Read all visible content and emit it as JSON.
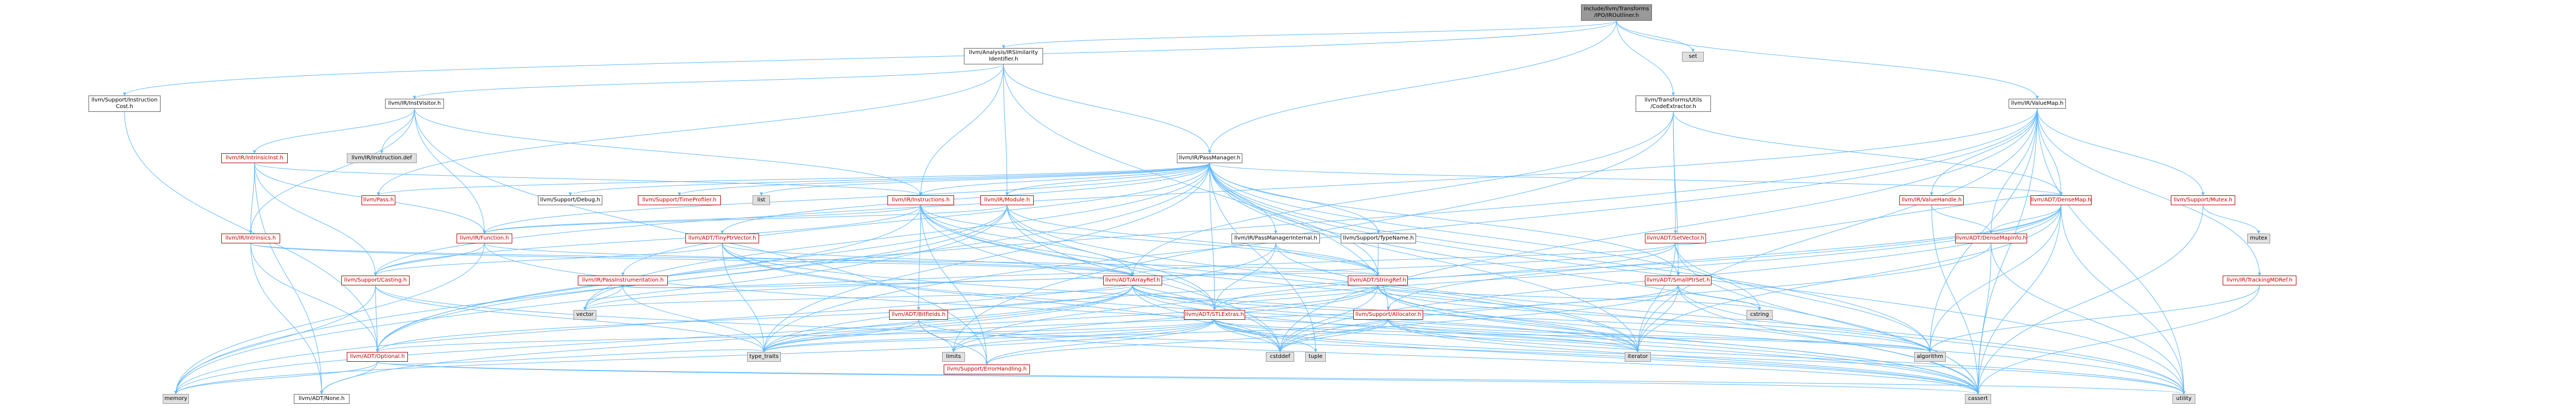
{
  "nodes": [
    {
      "id": "root",
      "lines": [
        "include/llvm/Transforms",
        "/IPO/IROutliner.h"
      ],
      "style": "root"
    },
    {
      "id": "ir-sim",
      "lines": [
        "llvm/Analysis/IRSimilarity",
        "Identifier.h"
      ],
      "style": "normal"
    },
    {
      "id": "set",
      "lines": [
        "set"
      ],
      "style": "grey"
    },
    {
      "id": "code-extractor",
      "lines": [
        "llvm/Transforms/Utils",
        "/CodeExtractor.h"
      ],
      "style": "normal"
    },
    {
      "id": "value-map",
      "lines": [
        "llvm/IR/ValueMap.h"
      ],
      "style": "normal"
    },
    {
      "id": "instruction-cost",
      "lines": [
        "llvm/Support/Instruction",
        "Cost.h"
      ],
      "style": "normal"
    },
    {
      "id": "inst-visitor",
      "lines": [
        "llvm/IR/InstVisitor.h"
      ],
      "style": "normal"
    },
    {
      "id": "pass-manager",
      "lines": [
        "llvm/IR/PassManager.h"
      ],
      "style": "normal"
    },
    {
      "id": "intrinsic-inst",
      "lines": [
        "llvm/IR/IntrinsicInst.h"
      ],
      "style": "red"
    },
    {
      "id": "instruction-def",
      "lines": [
        "llvm/IR/Instruction.def"
      ],
      "style": "grey"
    },
    {
      "id": "pass",
      "lines": [
        "llvm/Pass.h"
      ],
      "style": "red"
    },
    {
      "id": "support-debug",
      "lines": [
        "llvm/Support/Debug.h"
      ],
      "style": "normal"
    },
    {
      "id": "time-profiler",
      "lines": [
        "llvm/Support/TimeProfiler.h"
      ],
      "style": "red"
    },
    {
      "id": "list",
      "lines": [
        "list"
      ],
      "style": "grey"
    },
    {
      "id": "instructions",
      "lines": [
        "llvm/IR/Instructions.h"
      ],
      "style": "red"
    },
    {
      "id": "module",
      "lines": [
        "llvm/IR/Module.h"
      ],
      "style": "red"
    },
    {
      "id": "value-handle",
      "lines": [
        "llvm/IR/ValueHandle.h"
      ],
      "style": "red"
    },
    {
      "id": "dense-map",
      "lines": [
        "llvm/ADT/DenseMap.h"
      ],
      "style": "red"
    },
    {
      "id": "mutex-h",
      "lines": [
        "llvm/Support/Mutex.h"
      ],
      "style": "red"
    },
    {
      "id": "intrinsics",
      "lines": [
        "llvm/IR/Intrinsics.h"
      ],
      "style": "red"
    },
    {
      "id": "function",
      "lines": [
        "llvm/IR/Function.h"
      ],
      "style": "red"
    },
    {
      "id": "tiny-ptr-vector",
      "lines": [
        "llvm/ADT/TinyPtrVector.h"
      ],
      "style": "red"
    },
    {
      "id": "pass-manager-internal",
      "lines": [
        "llvm/IR/PassManagerInternal.h"
      ],
      "style": "normal"
    },
    {
      "id": "type-name",
      "lines": [
        "llvm/Support/TypeName.h"
      ],
      "style": "normal"
    },
    {
      "id": "set-vector",
      "lines": [
        "llvm/ADT/SetVector.h"
      ],
      "style": "red"
    },
    {
      "id": "dense-map-info",
      "lines": [
        "llvm/ADT/DenseMapInfo.h"
      ],
      "style": "red"
    },
    {
      "id": "mutex",
      "lines": [
        "mutex"
      ],
      "style": "grey"
    },
    {
      "id": "casting",
      "lines": [
        "llvm/Support/Casting.h"
      ],
      "style": "red"
    },
    {
      "id": "pass-instrumentation",
      "lines": [
        "llvm/IR/PassInstrumentation.h"
      ],
      "style": "red"
    },
    {
      "id": "array-ref",
      "lines": [
        "llvm/ADT/ArrayRef.h"
      ],
      "style": "red"
    },
    {
      "id": "string-ref",
      "lines": [
        "llvm/ADT/StringRef.h"
      ],
      "style": "red"
    },
    {
      "id": "small-ptr-set",
      "lines": [
        "llvm/ADT/SmallPtrSet.h"
      ],
      "style": "red"
    },
    {
      "id": "tracking-md-ref",
      "lines": [
        "llvm/IR/TrackingMDRef.h"
      ],
      "style": "red"
    },
    {
      "id": "vector",
      "lines": [
        "vector"
      ],
      "style": "grey"
    },
    {
      "id": "bitfields",
      "lines": [
        "llvm/ADT/Bitfields.h"
      ],
      "style": "red"
    },
    {
      "id": "stl-extras",
      "lines": [
        "llvm/ADT/STLExtras.h"
      ],
      "style": "red"
    },
    {
      "id": "allocator",
      "lines": [
        "llvm/Support/Allocator.h"
      ],
      "style": "red"
    },
    {
      "id": "cstring",
      "lines": [
        "cstring"
      ],
      "style": "grey"
    },
    {
      "id": "optional",
      "lines": [
        "llvm/ADT/Optional.h"
      ],
      "style": "red"
    },
    {
      "id": "type-traits",
      "lines": [
        "type_traits"
      ],
      "style": "grey"
    },
    {
      "id": "limits",
      "lines": [
        "limits"
      ],
      "style": "grey"
    },
    {
      "id": "error-handling",
      "lines": [
        "llvm/Support/ErrorHandling.h"
      ],
      "style": "red"
    },
    {
      "id": "cstddef",
      "lines": [
        "cstddef"
      ],
      "style": "grey"
    },
    {
      "id": "tuple",
      "lines": [
        "tuple"
      ],
      "style": "grey"
    },
    {
      "id": "iterator",
      "lines": [
        "iterator"
      ],
      "style": "grey"
    },
    {
      "id": "algorithm",
      "lines": [
        "algorithm"
      ],
      "style": "grey"
    },
    {
      "id": "memory",
      "lines": [
        "memory"
      ],
      "style": "grey"
    },
    {
      "id": "none",
      "lines": [
        "llvm/ADT/None.h"
      ],
      "style": "normal"
    },
    {
      "id": "cassert",
      "lines": [
        "cassert"
      ],
      "style": "grey"
    },
    {
      "id": "utility",
      "lines": [
        "utility"
      ],
      "style": "grey"
    }
  ],
  "edges": [
    [
      "root",
      "ir-sim"
    ],
    [
      "root",
      "set"
    ],
    [
      "root",
      "code-extractor"
    ],
    [
      "root",
      "value-map"
    ],
    [
      "root",
      "pass-manager"
    ],
    [
      "root",
      "instruction-cost"
    ],
    [
      "ir-sim",
      "inst-visitor"
    ],
    [
      "ir-sim",
      "pass-manager"
    ],
    [
      "ir-sim",
      "instructions"
    ],
    [
      "ir-sim",
      "module"
    ],
    [
      "ir-sim",
      "allocator"
    ],
    [
      "ir-sim",
      "pass"
    ],
    [
      "inst-visitor",
      "intrinsic-inst"
    ],
    [
      "inst-visitor",
      "instruction-def"
    ],
    [
      "inst-visitor",
      "instructions"
    ],
    [
      "inst-visitor",
      "intrinsics"
    ],
    [
      "inst-visitor",
      "function"
    ],
    [
      "inst-visitor",
      "error-handling"
    ],
    [
      "instruction-cost",
      "optional"
    ],
    [
      "intrinsic-inst",
      "intrinsics"
    ],
    [
      "intrinsic-inst",
      "function"
    ],
    [
      "intrinsic-inst",
      "casting"
    ],
    [
      "intrinsic-inst",
      "instructions"
    ],
    [
      "intrinsic-inst",
      "none"
    ],
    [
      "pass-manager",
      "support-debug"
    ],
    [
      "pass-manager",
      "time-profiler"
    ],
    [
      "pass-manager",
      "list"
    ],
    [
      "pass-manager",
      "module"
    ],
    [
      "pass-manager",
      "function"
    ],
    [
      "pass-manager",
      "tiny-ptr-vector"
    ],
    [
      "pass-manager",
      "pass-manager-internal"
    ],
    [
      "pass-manager",
      "type-name"
    ],
    [
      "pass-manager",
      "pass-instrumentation"
    ],
    [
      "pass-manager",
      "dense-map"
    ],
    [
      "pass-manager",
      "string-ref"
    ],
    [
      "pass-manager",
      "stl-extras"
    ],
    [
      "pass-manager",
      "small-ptr-set"
    ],
    [
      "pass-manager",
      "cstring"
    ],
    [
      "pass-manager",
      "iterator"
    ],
    [
      "pass-manager",
      "type-traits"
    ],
    [
      "pass-manager",
      "vector"
    ],
    [
      "pass-manager",
      "tuple"
    ],
    [
      "pass-manager",
      "algorithm"
    ],
    [
      "pass-manager",
      "memory"
    ],
    [
      "pass-manager",
      "utility"
    ],
    [
      "pass-manager",
      "cassert"
    ],
    [
      "pass-manager",
      "pass"
    ],
    [
      "pass-manager",
      "instructions"
    ],
    [
      "code-extractor",
      "dense-map"
    ],
    [
      "code-extractor",
      "set-vector"
    ],
    [
      "code-extractor",
      "small-ptr-set"
    ],
    [
      "code-extractor",
      "array-ref"
    ],
    [
      "code-extractor",
      "limits"
    ],
    [
      "value-map",
      "dense-map"
    ],
    [
      "value-map",
      "dense-map-info"
    ],
    [
      "value-map",
      "value-handle"
    ],
    [
      "value-map",
      "tracking-md-ref"
    ],
    [
      "value-map",
      "mutex-h"
    ],
    [
      "value-map",
      "optional"
    ],
    [
      "value-map",
      "casting"
    ],
    [
      "value-map",
      "iterator"
    ],
    [
      "value-map",
      "type-traits"
    ],
    [
      "value-map",
      "cstddef"
    ],
    [
      "value-map",
      "utility"
    ],
    [
      "value-map",
      "algorithm"
    ],
    [
      "value-map",
      "cassert"
    ],
    [
      "instructions",
      "array-ref"
    ],
    [
      "instructions",
      "bitfields"
    ],
    [
      "instructions",
      "stl-extras"
    ],
    [
      "instructions",
      "string-ref"
    ],
    [
      "instructions",
      "optional"
    ],
    [
      "instructions",
      "casting"
    ],
    [
      "instructions",
      "error-handling"
    ],
    [
      "instructions",
      "iterator"
    ],
    [
      "instructions",
      "cassert"
    ],
    [
      "instructions",
      "cstddef"
    ],
    [
      "instructions",
      "function"
    ],
    [
      "module",
      "function"
    ],
    [
      "module",
      "string-ref"
    ],
    [
      "module",
      "stl-extras"
    ],
    [
      "module",
      "optional"
    ],
    [
      "module",
      "iterator"
    ],
    [
      "module",
      "cstddef"
    ],
    [
      "module",
      "memory"
    ],
    [
      "module",
      "vector"
    ],
    [
      "function",
      "casting"
    ],
    [
      "function",
      "array-ref"
    ],
    [
      "function",
      "memory"
    ],
    [
      "function",
      "cassert"
    ],
    [
      "intrinsics",
      "array-ref"
    ],
    [
      "intrinsics",
      "none"
    ],
    [
      "intrinsics",
      "optional"
    ],
    [
      "intrinsics",
      "string-ref"
    ],
    [
      "tiny-ptr-vector",
      "array-ref"
    ],
    [
      "tiny-ptr-vector",
      "casting"
    ],
    [
      "tiny-ptr-vector",
      "cassert"
    ],
    [
      "tiny-ptr-vector",
      "cstddef"
    ],
    [
      "tiny-ptr-vector",
      "iterator"
    ],
    [
      "tiny-ptr-vector",
      "type-traits"
    ],
    [
      "pass-manager-internal",
      "string-ref"
    ],
    [
      "pass-manager-internal",
      "stl-extras"
    ],
    [
      "pass-manager-internal",
      "memory"
    ],
    [
      "pass-manager-internal",
      "utility"
    ],
    [
      "type-name",
      "string-ref"
    ],
    [
      "value-handle",
      "dense-map-info"
    ],
    [
      "value-handle",
      "cassert"
    ],
    [
      "dense-map",
      "dense-map-info"
    ],
    [
      "dense-map",
      "algorithm"
    ],
    [
      "dense-map",
      "cassert"
    ],
    [
      "dense-map",
      "cstddef"
    ],
    [
      "dense-map",
      "iterator"
    ],
    [
      "dense-map",
      "limits"
    ],
    [
      "dense-map",
      "utility"
    ],
    [
      "dense-map",
      "type-traits"
    ],
    [
      "dense-map",
      "allocator"
    ],
    [
      "set-vector",
      "array-ref"
    ],
    [
      "set-vector",
      "dense-map"
    ],
    [
      "set-vector",
      "stl-extras"
    ],
    [
      "set-vector",
      "algorithm"
    ],
    [
      "set-vector",
      "cassert"
    ],
    [
      "set-vector",
      "iterator"
    ],
    [
      "set-vector",
      "vector"
    ],
    [
      "small-ptr-set",
      "cstring"
    ],
    [
      "small-ptr-set",
      "cassert"
    ],
    [
      "small-ptr-set",
      "cstddef"
    ],
    [
      "small-ptr-set",
      "iterator"
    ],
    [
      "small-ptr-set",
      "utility"
    ],
    [
      "small-ptr-set",
      "type-traits"
    ],
    [
      "mutex-h",
      "mutex"
    ],
    [
      "mutex-h",
      "cassert"
    ],
    [
      "tracking-md-ref",
      "algorithm"
    ],
    [
      "tracking-md-ref",
      "cassert"
    ],
    [
      "dense-map-info",
      "cassert"
    ],
    [
      "dense-map-info",
      "cstddef"
    ],
    [
      "dense-map-info",
      "utility"
    ],
    [
      "casting",
      "memory"
    ],
    [
      "casting",
      "type-traits"
    ],
    [
      "casting",
      "cassert"
    ],
    [
      "casting",
      "optional"
    ],
    [
      "array-ref",
      "optional"
    ],
    [
      "array-ref",
      "stl-extras"
    ],
    [
      "array-ref",
      "none"
    ],
    [
      "array-ref",
      "algorithm"
    ],
    [
      "array-ref",
      "vector"
    ],
    [
      "array-ref",
      "memory"
    ],
    [
      "array-ref",
      "iterator"
    ],
    [
      "array-ref",
      "cassert"
    ],
    [
      "array-ref",
      "cstddef"
    ],
    [
      "array-ref",
      "type-traits"
    ],
    [
      "string-ref",
      "stl-extras"
    ],
    [
      "string-ref",
      "algorithm"
    ],
    [
      "string-ref",
      "cassert"
    ],
    [
      "string-ref",
      "cstddef"
    ],
    [
      "string-ref",
      "cstring"
    ],
    [
      "string-ref",
      "limits"
    ],
    [
      "string-ref",
      "type-traits"
    ],
    [
      "string-ref",
      "utility"
    ],
    [
      "string-ref",
      "iterator"
    ],
    [
      "bitfields",
      "limits"
    ],
    [
      "bitfields",
      "cassert"
    ],
    [
      "bitfields",
      "type-traits"
    ],
    [
      "bitfields",
      "error-handling"
    ],
    [
      "stl-extras",
      "optional"
    ],
    [
      "stl-extras",
      "type-traits"
    ],
    [
      "stl-extras",
      "tuple"
    ],
    [
      "stl-extras",
      "iterator"
    ],
    [
      "stl-extras",
      "algorithm"
    ],
    [
      "stl-extras",
      "cassert"
    ],
    [
      "stl-extras",
      "cstddef"
    ],
    [
      "stl-extras",
      "limits"
    ],
    [
      "stl-extras",
      "memory"
    ],
    [
      "stl-extras",
      "utility"
    ],
    [
      "stl-extras",
      "error-handling"
    ],
    [
      "allocator",
      "error-handling"
    ],
    [
      "allocator",
      "algorithm"
    ],
    [
      "allocator",
      "cassert"
    ],
    [
      "allocator",
      "cstddef"
    ],
    [
      "allocator",
      "iterator"
    ],
    [
      "allocator",
      "type-traits"
    ],
    [
      "allocator",
      "utility"
    ],
    [
      "optional",
      "none"
    ],
    [
      "optional",
      "cassert"
    ],
    [
      "optional",
      "memory"
    ],
    [
      "optional",
      "utility"
    ],
    [
      "optional",
      "type-traits"
    ],
    [
      "pass-instrumentation",
      "array-ref"
    ],
    [
      "pass-instrumentation",
      "string-ref"
    ],
    [
      "pass-instrumentation",
      "type-traits"
    ],
    [
      "pass-instrumentation",
      "vector"
    ]
  ]
}
